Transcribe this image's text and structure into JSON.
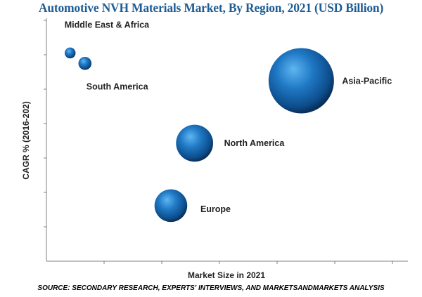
{
  "title": "Automotive NVH Materials Market, By Region, 2021 (USD Billion)",
  "source": "SOURCE: SECONDARY RESEARCH, EXPERTS' INTERVIEWS, AND MARKETSANDMARKETS ANALYSIS",
  "colors": {
    "title": "#1f5d95",
    "bubble": "#1f6fb5",
    "axis": "#808080"
  },
  "chart_data": {
    "type": "scatter",
    "title": "Automotive NVH Materials Market, By Region, 2021 (USD Billion)",
    "xlabel": "Market Size in 2021",
    "ylabel": "CAGR % (2016-202)",
    "grid": false,
    "points": [
      {
        "label": "Middle East & Africa",
        "x": 0.4,
        "y": 6.0,
        "size": 0.5
      },
      {
        "label": "South America",
        "x": 0.65,
        "y": 5.7,
        "size": 0.6
      },
      {
        "label": "North America",
        "x": 2.5,
        "y": 3.4,
        "size": 1.7
      },
      {
        "label": "Europe",
        "x": 2.1,
        "y": 1.6,
        "size": 1.5
      },
      {
        "label": "Asia-Pacific",
        "x": 4.3,
        "y": 5.2,
        "size": 3.0
      }
    ]
  }
}
